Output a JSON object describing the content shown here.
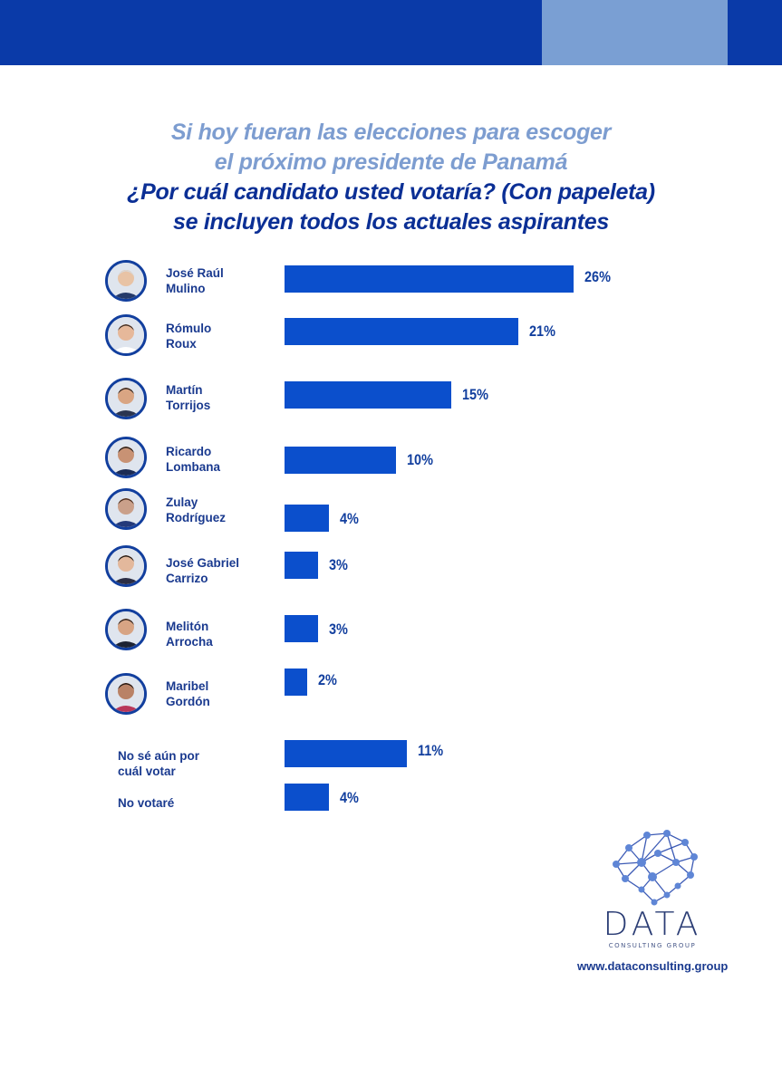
{
  "colors": {
    "topbar": "#0a3aa8",
    "topbar_accent": "#7a9fd3",
    "bar": "#0b4fcc",
    "title_light": "#7d9dd0",
    "title_dark": "#0b2f95"
  },
  "header": {
    "line1": "Si hoy fueran las elecciones para escoger",
    "line2": "el próximo presidente de Panamá",
    "line3": "¿Por cuál candidato usted votaría? (Con papeleta)",
    "line4": "se incluyen todos los actuales aspirantes"
  },
  "chart_data": {
    "type": "bar",
    "orientation": "horizontal",
    "title": "¿Por cuál candidato usted votaría? (Con papeleta)",
    "xlabel": "",
    "ylabel": "",
    "xlim": [
      0,
      26
    ],
    "unit": "%",
    "categories": [
      "José Raúl Mulino",
      "Rómulo Roux",
      "Martín Torrijos",
      "Ricardo Lombana",
      "Zulay Rodríguez",
      "José Gabriel Carrizo",
      "Melitón Arrocha",
      "Maribel Gordón",
      "No sé aún por cuál votar",
      "No votaré"
    ],
    "values": [
      26,
      21,
      15,
      10,
      4,
      3,
      3,
      2,
      11,
      4
    ],
    "items": [
      {
        "line1": "José Raúl",
        "line2": "Mulino",
        "value": 26,
        "label": "26%",
        "icon": "candidate-photo"
      },
      {
        "line1": "Rómulo",
        "line2": "Roux",
        "value": 21,
        "label": "21%",
        "icon": "candidate-photo"
      },
      {
        "line1": "Martín",
        "line2": "Torrijos",
        "value": 15,
        "label": "15%",
        "icon": "candidate-photo"
      },
      {
        "line1": "Ricardo",
        "line2": "Lombana",
        "value": 10,
        "label": "10%",
        "icon": "candidate-photo"
      },
      {
        "line1": "Zulay",
        "line2": "Rodríguez",
        "value": 4,
        "label": "4%",
        "icon": "candidate-photo"
      },
      {
        "line1": "José Gabriel",
        "line2": "Carrizo",
        "value": 3,
        "label": "3%",
        "icon": "candidate-photo"
      },
      {
        "line1": "Melitón",
        "line2": "Arrocha",
        "value": 3,
        "label": "3%",
        "icon": "candidate-photo"
      },
      {
        "line1": "Maribel",
        "line2": "Gordón",
        "value": 2,
        "label": "2%",
        "icon": "candidate-photo"
      },
      {
        "line1": "No sé aún por",
        "line2": "cuál votar",
        "value": 11,
        "label": "11%"
      },
      {
        "line1": "No votaré",
        "line2": "",
        "value": 4,
        "label": "4%"
      }
    ]
  },
  "brand": {
    "logo": "DATA",
    "subtitle": "CONSULTING GROUP",
    "website": "www.dataconsulting.group",
    "icon": "brain-network-icon"
  }
}
